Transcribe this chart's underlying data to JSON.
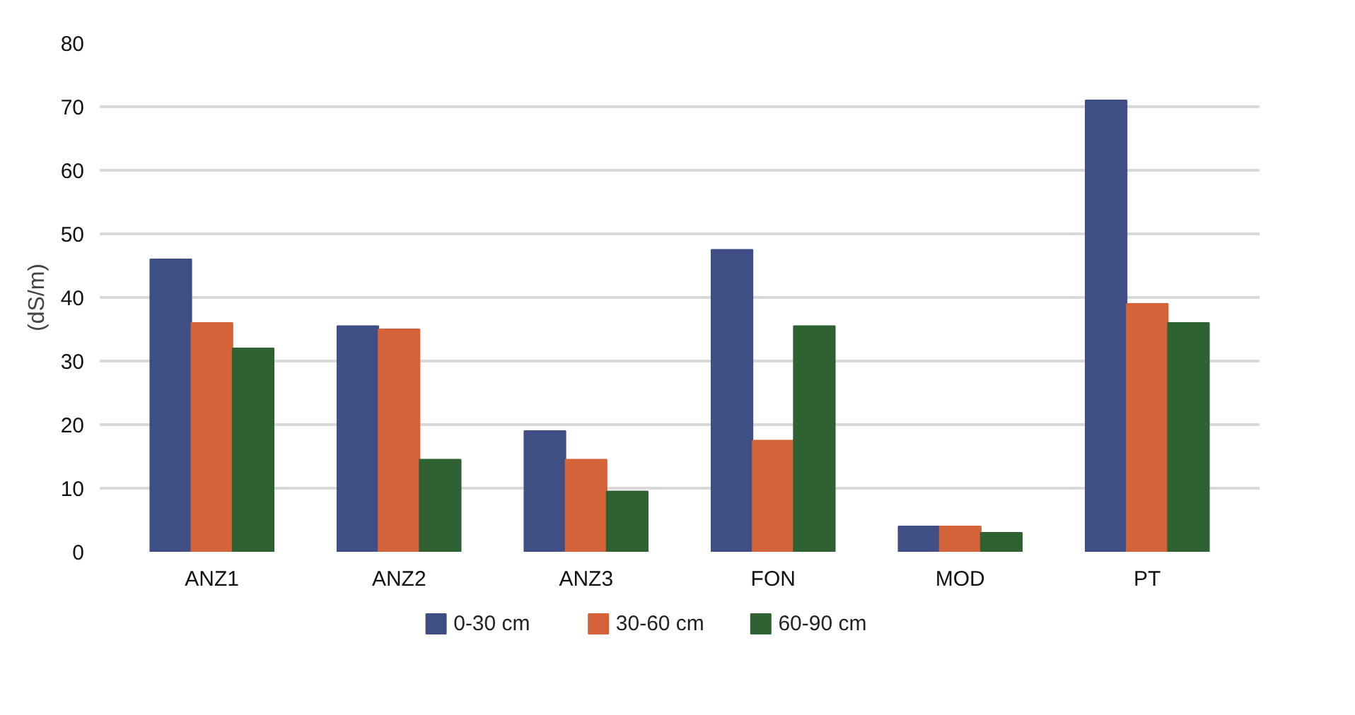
{
  "chart_data": {
    "type": "bar",
    "ylabel": "(dS/m)",
    "categories": [
      "ANZ1",
      "ANZ2",
      "ANZ3",
      "FON",
      "MOD",
      "PT"
    ],
    "series": [
      {
        "name": "0-30 cm",
        "color": "#3f4f85",
        "values": [
          46,
          35.5,
          19,
          47.5,
          4,
          71
        ]
      },
      {
        "name": "30-60 cm",
        "color": "#d4633a",
        "values": [
          36,
          35,
          14.5,
          17.5,
          4,
          39
        ]
      },
      {
        "name": "60-90 cm",
        "color": "#2f6233",
        "values": [
          32,
          14.5,
          9.5,
          35.5,
          3,
          36
        ]
      }
    ],
    "ylim": [
      0,
      80
    ],
    "yticks": [
      0,
      10,
      20,
      30,
      40,
      50,
      60,
      70,
      80
    ],
    "grid": "y",
    "legend": "bottom"
  }
}
